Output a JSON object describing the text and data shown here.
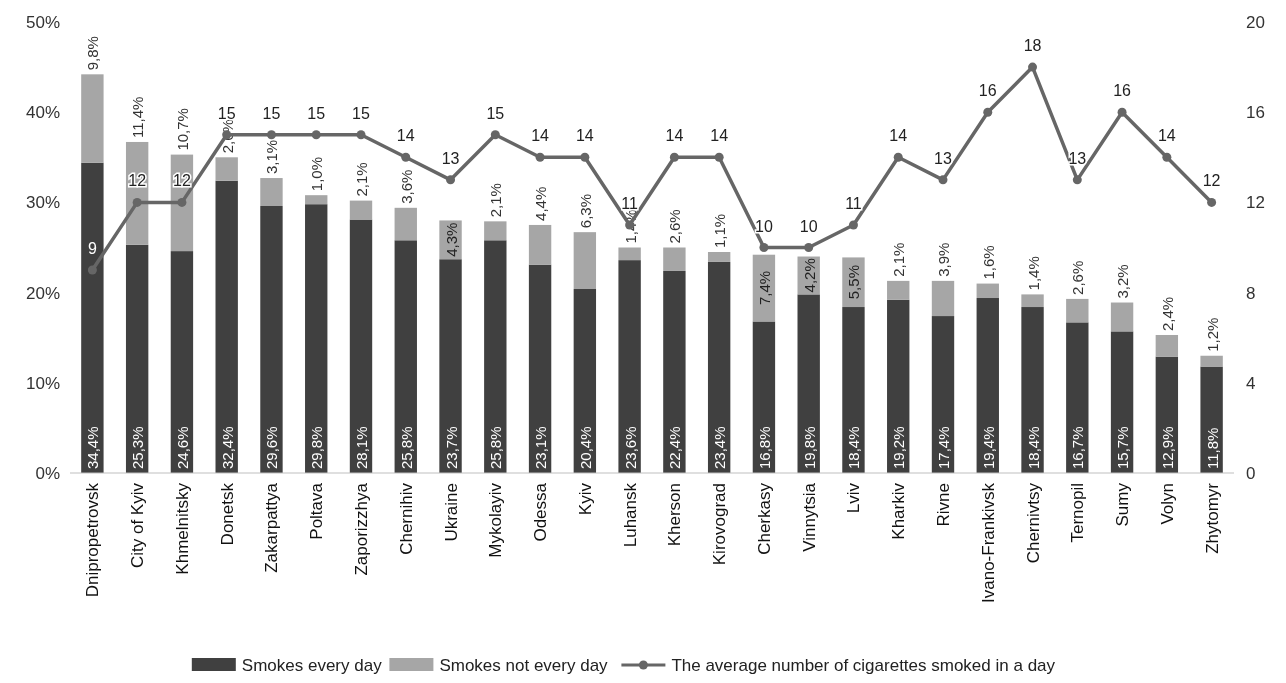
{
  "chart_data": {
    "type": "bar",
    "stacked": true,
    "categories": [
      "Dnipropetrovsk",
      "City of Kyiv",
      "Khmelnitsky",
      "Donetsk",
      "Zakarpattya",
      "Poltava",
      "Zaporizzhya",
      "Chernihiv",
      "Ukraine",
      "Mykolayiv",
      "Odessa",
      "Kyiv",
      "Luhansk",
      "Kherson",
      "Kirovograd",
      "Cherkasy",
      "Vinnytsia",
      "Lviv",
      "Kharkiv",
      "Rivne",
      "Ivano-Frankivsk",
      "Chernivtsy",
      "Ternopil",
      "Sumy",
      "Volyn",
      "Zhytomyr"
    ],
    "series": [
      {
        "name": "Smokes every day",
        "color": "#404040",
        "values": [
          34.4,
          25.3,
          24.6,
          32.4,
          29.6,
          29.8,
          28.1,
          25.8,
          23.7,
          25.8,
          23.1,
          20.4,
          23.6,
          22.4,
          23.4,
          16.8,
          19.8,
          18.4,
          19.2,
          17.4,
          19.4,
          18.4,
          16.7,
          15.7,
          12.9,
          11.8
        ],
        "value_labels": [
          "34,4%",
          "25,3%",
          "24,6%",
          "32,4%",
          "29,6%",
          "29,8%",
          "28,1%",
          "25,8%",
          "23,7%",
          "25,8%",
          "23,1%",
          "20,4%",
          "23,6%",
          "22,4%",
          "23,4%",
          "16,8%",
          "19,8%",
          "18,4%",
          "19,2%",
          "17,4%",
          "19,4%",
          "18,4%",
          "16,7%",
          "15,7%",
          "12,9%",
          "11,8%"
        ]
      },
      {
        "name": "Smokes not every day",
        "color": "#a6a6a6",
        "values": [
          9.8,
          11.4,
          10.7,
          2.6,
          3.1,
          1.0,
          2.1,
          3.6,
          4.3,
          2.1,
          4.4,
          6.3,
          1.4,
          2.6,
          1.1,
          7.4,
          4.2,
          5.5,
          2.1,
          3.9,
          1.6,
          1.4,
          2.6,
          3.2,
          2.4,
          1.2
        ],
        "value_labels": [
          "9,8%",
          "11,4%",
          "10,7%",
          "2,6%",
          "3,1%",
          "1,0%",
          "2,1%",
          "3,6%",
          "4,3%",
          "2,1%",
          "4,4%",
          "6,3%",
          "1,4%",
          "2,6%",
          "1,1%",
          "7,4%",
          "4,2%",
          "5,5%",
          "2,1%",
          "3,9%",
          "1,6%",
          "1,4%",
          "2,6%",
          "3,2%",
          "2,4%",
          "1,2%"
        ]
      },
      {
        "name": "The average number of cigarettes smoked in a day",
        "type": "line",
        "axis": "y2",
        "color": "#666666",
        "values": [
          9,
          12,
          12,
          15,
          15,
          15,
          15,
          14,
          13,
          15,
          14,
          14,
          11,
          14,
          14,
          10,
          10,
          11,
          14,
          13,
          16,
          18,
          13,
          16,
          14,
          12
        ],
        "value_labels": [
          "9",
          "12",
          "12",
          "15",
          "15",
          "15",
          "15",
          "14",
          "13",
          "15",
          "14",
          "14",
          "11",
          "14",
          "14",
          "10",
          "10",
          "11",
          "14",
          "13",
          "16",
          "18",
          "13",
          "16",
          "14",
          "12"
        ]
      }
    ],
    "ylim": [
      0,
      50
    ],
    "yticks": [
      {
        "value": 0,
        "label": "0%"
      },
      {
        "value": 10,
        "label": "10%"
      },
      {
        "value": 20,
        "label": "20%"
      },
      {
        "value": 30,
        "label": "30%"
      },
      {
        "value": 40,
        "label": "40%"
      },
      {
        "value": 50,
        "label": "50%"
      }
    ],
    "y2lim": [
      0,
      20
    ],
    "y2ticks": [
      0,
      4,
      8,
      12,
      16,
      20
    ],
    "marker": "circle",
    "line_style": "solid",
    "grid": false,
    "legend": "bottom"
  }
}
